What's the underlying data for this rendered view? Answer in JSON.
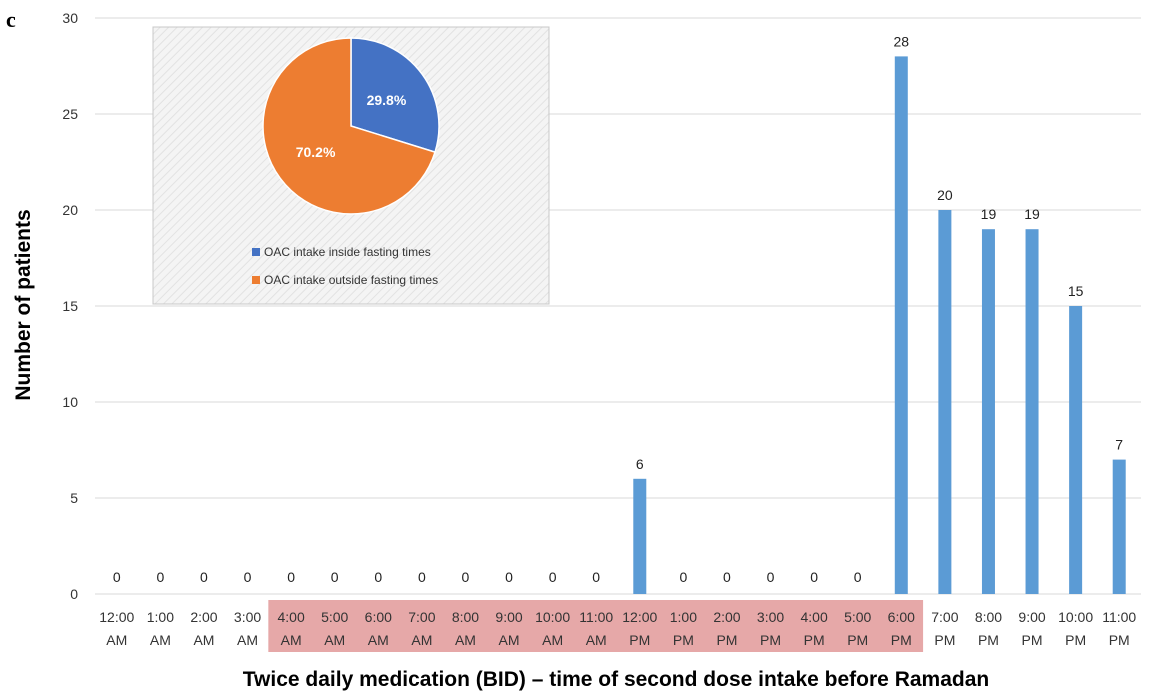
{
  "panel_letter": "c",
  "chart_data": [
    {
      "type": "bar",
      "xlabel": "Twice daily medication (BID) – time of second dose intake before Ramadan",
      "ylabel": "Number of patients",
      "ylim": [
        0,
        30
      ],
      "yticks": [
        0,
        5,
        10,
        15,
        20,
        25,
        30
      ],
      "grid": true,
      "categories": [
        [
          "12:00",
          "AM"
        ],
        [
          "1:00",
          "AM"
        ],
        [
          "2:00",
          "AM"
        ],
        [
          "3:00",
          "AM"
        ],
        [
          "4:00",
          "AM"
        ],
        [
          "5:00",
          "AM"
        ],
        [
          "6:00",
          "AM"
        ],
        [
          "7:00",
          "AM"
        ],
        [
          "8:00",
          "AM"
        ],
        [
          "9:00",
          "AM"
        ],
        [
          "10:00",
          "AM"
        ],
        [
          "11:00",
          "AM"
        ],
        [
          "12:00",
          "PM"
        ],
        [
          "1:00",
          "PM"
        ],
        [
          "2:00",
          "PM"
        ],
        [
          "3:00",
          "PM"
        ],
        [
          "4:00",
          "PM"
        ],
        [
          "5:00",
          "PM"
        ],
        [
          "6:00",
          "PM"
        ],
        [
          "7:00",
          "PM"
        ],
        [
          "8:00",
          "PM"
        ],
        [
          "9:00",
          "PM"
        ],
        [
          "10:00",
          "PM"
        ],
        [
          "11:00",
          "PM"
        ]
      ],
      "values": [
        0,
        0,
        0,
        0,
        0,
        0,
        0,
        0,
        0,
        0,
        0,
        0,
        6,
        0,
        0,
        0,
        0,
        0,
        28,
        20,
        19,
        19,
        15,
        7
      ],
      "data_labels": [
        "0",
        "0",
        "0",
        "0",
        "0",
        "0",
        "0",
        "0",
        "0",
        "0",
        "0",
        "0",
        "6",
        "0",
        "0",
        "0",
        "0",
        "0",
        "28",
        "20",
        "19",
        "19",
        "15",
        "7"
      ],
      "highlighted_range": {
        "from": "4:00 AM",
        "to": "6:00 PM",
        "color": "#e6a8a8"
      },
      "bar_color": "#5b9bd5"
    },
    {
      "type": "pie",
      "slices": [
        {
          "label": "OAC intake inside fasting times",
          "value": 29.8,
          "display": "29.8%",
          "color": "#4472c4"
        },
        {
          "label": "OAC intake outside fasting times",
          "value": 70.2,
          "display": "70.2%",
          "color": "#ed7d31"
        }
      ],
      "legend_position": "bottom"
    }
  ]
}
